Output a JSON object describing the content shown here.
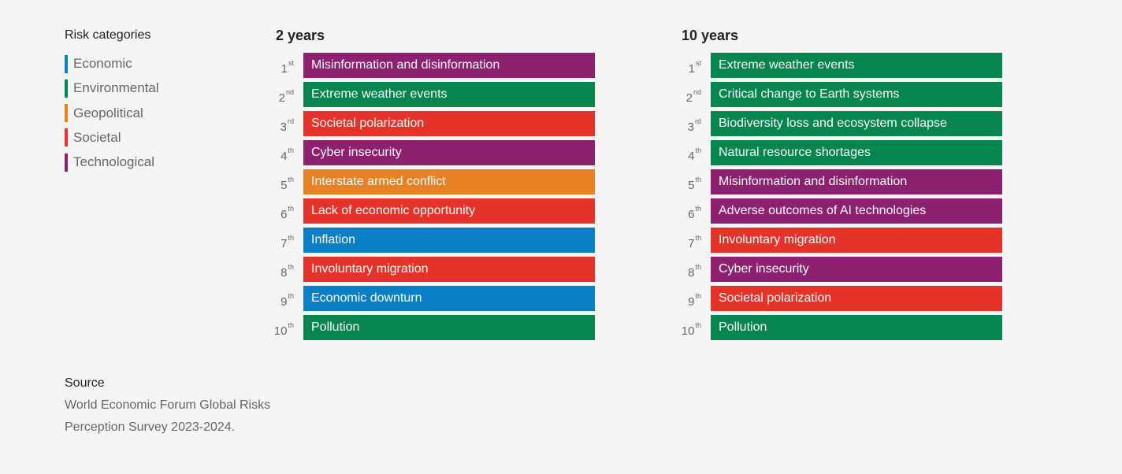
{
  "legend": {
    "title": "Risk categories",
    "items": [
      {
        "label": "Economic",
        "color": "#0b7fc6"
      },
      {
        "label": "Environmental",
        "color": "#06864e"
      },
      {
        "label": "Geopolitical",
        "color": "#e88024"
      },
      {
        "label": "Societal",
        "color": "#e5332a"
      },
      {
        "label": "Technological",
        "color": "#8e2070"
      }
    ]
  },
  "source": {
    "title": "Source",
    "text_line1": "World Economic Forum Global Risks",
    "text_line2": "Perception Survey 2023-2024."
  },
  "chart_data": [
    {
      "type": "table",
      "title": "2 years",
      "rows": [
        {
          "rank": "1",
          "suffix": "st",
          "label": "Misinformation and disinformation",
          "category": "Technological"
        },
        {
          "rank": "2",
          "suffix": "nd",
          "label": "Extreme weather events",
          "category": "Environmental"
        },
        {
          "rank": "3",
          "suffix": "rd",
          "label": "Societal polarization",
          "category": "Societal"
        },
        {
          "rank": "4",
          "suffix": "th",
          "label": "Cyber insecurity",
          "category": "Technological"
        },
        {
          "rank": "5",
          "suffix": "th",
          "label": "Interstate armed conflict",
          "category": "Geopolitical"
        },
        {
          "rank": "6",
          "suffix": "th",
          "label": "Lack of economic opportunity",
          "category": "Societal"
        },
        {
          "rank": "7",
          "suffix": "th",
          "label": "Inflation",
          "category": "Economic"
        },
        {
          "rank": "8",
          "suffix": "th",
          "label": "Involuntary migration",
          "category": "Societal"
        },
        {
          "rank": "9",
          "suffix": "th",
          "label": "Economic downturn",
          "category": "Economic"
        },
        {
          "rank": "10",
          "suffix": "th",
          "label": "Pollution",
          "category": "Environmental"
        }
      ]
    },
    {
      "type": "table",
      "title": "10 years",
      "rows": [
        {
          "rank": "1",
          "suffix": "st",
          "label": "Extreme weather events",
          "category": "Environmental"
        },
        {
          "rank": "2",
          "suffix": "nd",
          "label": "Critical change to Earth systems",
          "category": "Environmental"
        },
        {
          "rank": "3",
          "suffix": "rd",
          "label": "Biodiversity loss and ecosystem collapse",
          "category": "Environmental"
        },
        {
          "rank": "4",
          "suffix": "th",
          "label": "Natural resource shortages",
          "category": "Environmental"
        },
        {
          "rank": "5",
          "suffix": "th",
          "label": "Misinformation and disinformation",
          "category": "Technological"
        },
        {
          "rank": "6",
          "suffix": "th",
          "label": "Adverse outcomes of AI technologies",
          "category": "Technological"
        },
        {
          "rank": "7",
          "suffix": "th",
          "label": "Involuntary migration",
          "category": "Societal"
        },
        {
          "rank": "8",
          "suffix": "th",
          "label": "Cyber insecurity",
          "category": "Technological"
        },
        {
          "rank": "9",
          "suffix": "th",
          "label": "Societal polarization",
          "category": "Societal"
        },
        {
          "rank": "10",
          "suffix": "th",
          "label": "Pollution",
          "category": "Environmental"
        }
      ]
    }
  ]
}
